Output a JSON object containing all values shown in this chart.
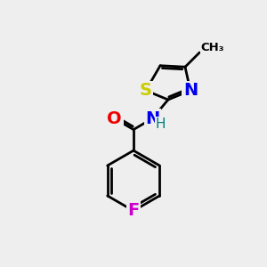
{
  "background_color": "#eeeeee",
  "bond_color": "black",
  "bond_width": 2.0,
  "atoms": {
    "S": {
      "color": "#cccc00",
      "fontsize": 14,
      "fontweight": "bold"
    },
    "N": {
      "color": "#0000ee",
      "fontsize": 14,
      "fontweight": "bold"
    },
    "O": {
      "color": "#ee0000",
      "fontsize": 14,
      "fontweight": "bold"
    },
    "F": {
      "color": "#cc00cc",
      "fontsize": 14,
      "fontweight": "bold"
    },
    "H": {
      "color": "#008080",
      "fontsize": 11,
      "fontweight": "normal"
    }
  },
  "figsize": [
    3.0,
    3.0
  ],
  "dpi": 100
}
